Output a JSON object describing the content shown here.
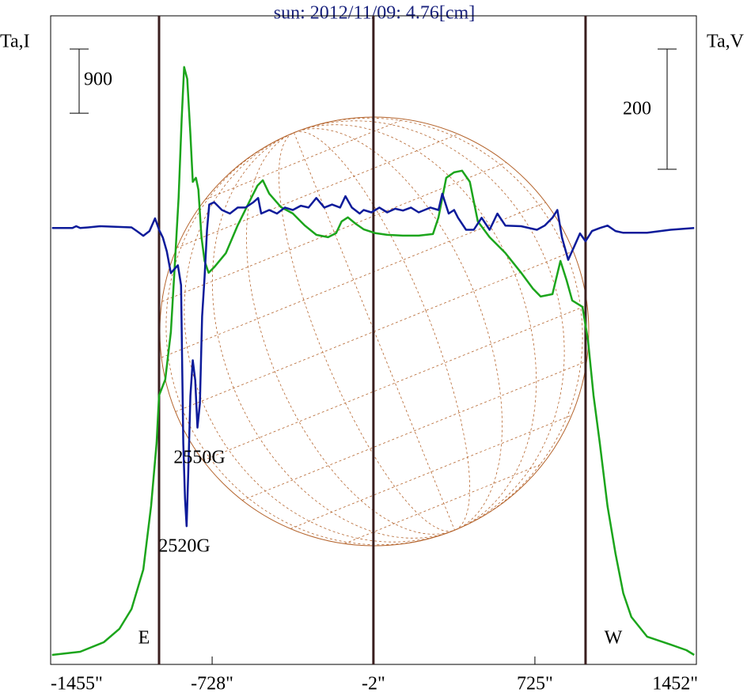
{
  "chart_data": {
    "type": "line",
    "title": "sun: 2012/11/09: 4.76[cm]",
    "ylabel": "Ta,I",
    "y2label": "Ta,V",
    "xlim": [
      -1455,
      1452
    ],
    "xticks": [
      {
        "value": -1455,
        "label": "-1455\""
      },
      {
        "value": -728,
        "label": "-728\""
      },
      {
        "value": -2,
        "label": "-2\""
      },
      {
        "value": 725,
        "label": "725\""
      },
      {
        "value": 1452,
        "label": "1452\""
      }
    ],
    "ylim": [
      0,
      9100
    ],
    "y2lim": [
      -726,
      353
    ],
    "scale_bars": [
      {
        "axis": "y",
        "value": 900
      },
      {
        "axis": "y2",
        "value": 200
      }
    ],
    "vlines": [
      -967,
      -2,
      953
    ],
    "annotations": [
      "E",
      "W",
      "2550G",
      "2520G"
    ],
    "series": [
      {
        "name": "Ta,I",
        "color": "#1ca51c",
        "x": [
          -1449,
          -1322,
          -1216,
          -1145,
          -1091,
          -1038,
          -1003,
          -978,
          -967,
          -939,
          -914,
          -897,
          -879,
          -865,
          -854,
          -840,
          -826,
          -815,
          -801,
          -790,
          -776,
          -762,
          -744,
          -719,
          -666,
          -613,
          -560,
          -524,
          -500,
          -471,
          -418,
          -365,
          -312,
          -259,
          -206,
          -170,
          -145,
          -117,
          -82,
          -46,
          7,
          60,
          131,
          202,
          266,
          291,
          326,
          361,
          397,
          432,
          468,
          521,
          592,
          663,
          716,
          751,
          804,
          840,
          868,
          893,
          939,
          964,
          989,
          1017,
          1052,
          1088,
          1123,
          1159,
          1230,
          1336,
          1407,
          1442
        ],
        "values": [
          133,
          178,
          311,
          500,
          777,
          1332,
          2220,
          3108,
          3774,
          3996,
          4662,
          5550,
          6549,
          7659,
          8381,
          8214,
          7437,
          6771,
          6827,
          6660,
          5994,
          5661,
          5495,
          5572,
          5772,
          6161,
          6494,
          6716,
          6793,
          6605,
          6416,
          6327,
          6161,
          6027,
          5994,
          6050,
          6216,
          6272,
          6183,
          6105,
          6050,
          6027,
          6016,
          6016,
          6038,
          6272,
          6827,
          6904,
          6927,
          6771,
          6216,
          5994,
          5772,
          5495,
          5273,
          5161,
          5195,
          5661,
          5384,
          5106,
          5017,
          4551,
          3774,
          3108,
          2220,
          1554,
          999,
          666,
          389,
          278,
          200,
          133
        ]
      },
      {
        "name": "Ta,V",
        "color": "#0d1b9a",
        "axis": "y2",
        "x": [
          -1449,
          -1357,
          -1340,
          -1322,
          -1286,
          -1233,
          -1091,
          -1067,
          -1038,
          -1010,
          -985,
          -967,
          -950,
          -932,
          -914,
          -897,
          -882,
          -868,
          -858,
          -850,
          -843,
          -836,
          -826,
          -815,
          -804,
          -794,
          -783,
          -773,
          -762,
          -751,
          -741,
          -719,
          -684,
          -648,
          -613,
          -578,
          -542,
          -521,
          -507,
          -471,
          -436,
          -400,
          -365,
          -329,
          -294,
          -259,
          -223,
          -188,
          -152,
          -128,
          -99,
          -64,
          -46,
          -11,
          25,
          60,
          96,
          131,
          167,
          202,
          255,
          291,
          308,
          337,
          361,
          379,
          415,
          450,
          485,
          521,
          556,
          592,
          663,
          734,
          769,
          804,
          826,
          847,
          875,
          904,
          928,
          953,
          982,
          1017,
          1052,
          1088,
          1123,
          1230,
          1336,
          1442
        ],
        "values": [
          0,
          0,
          3,
          0,
          1,
          3,
          1,
          -5,
          -13,
          -5,
          16,
          -3,
          -16,
          -39,
          -75,
          -68,
          -62,
          -95,
          -358,
          -450,
          -496,
          -411,
          -279,
          -220,
          -253,
          -332,
          -292,
          -147,
          -82,
          -3,
          39,
          43,
          30,
          24,
          34,
          34,
          43,
          50,
          24,
          30,
          24,
          34,
          30,
          37,
          34,
          50,
          34,
          39,
          34,
          53,
          34,
          24,
          30,
          26,
          34,
          26,
          32,
          29,
          34,
          26,
          34,
          30,
          57,
          24,
          30,
          17,
          -3,
          -3,
          17,
          -3,
          24,
          4,
          3,
          -3,
          4,
          17,
          30,
          -16,
          -53,
          -29,
          -9,
          -22,
          -5,
          0,
          4,
          -5,
          -8,
          -8,
          -3,
          0
        ]
      }
    ]
  }
}
